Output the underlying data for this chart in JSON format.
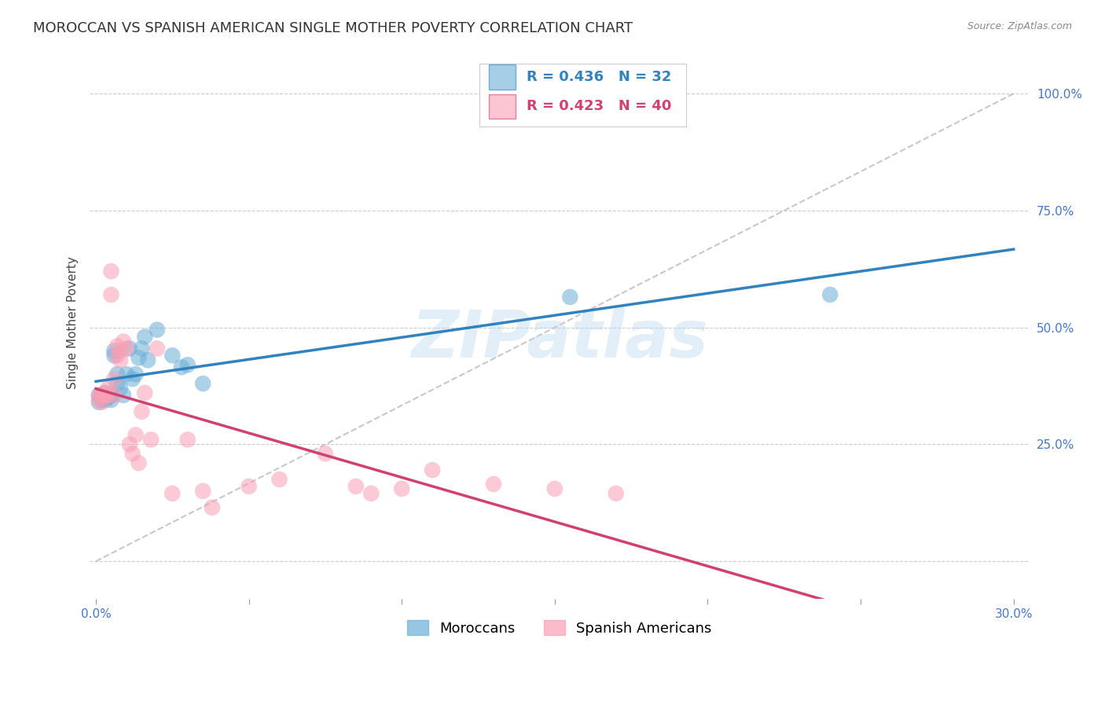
{
  "title": "MOROCCAN VS SPANISH AMERICAN SINGLE MOTHER POVERTY CORRELATION CHART",
  "source": "Source: ZipAtlas.com",
  "ylabel": "Single Mother Poverty",
  "xlim": [
    -0.002,
    0.305
  ],
  "ylim": [
    -0.08,
    1.1
  ],
  "yticks": [
    0.0,
    0.25,
    0.5,
    0.75,
    1.0
  ],
  "ytick_labels": [
    "",
    "25.0%",
    "50.0%",
    "75.0%",
    "100.0%"
  ],
  "xticks": [
    0.0,
    0.05,
    0.1,
    0.15,
    0.2,
    0.25,
    0.3
  ],
  "xtick_labels": [
    "0.0%",
    "",
    "",
    "",
    "",
    "",
    "30.0%"
  ],
  "moroccans_x": [
    0.001,
    0.001,
    0.002,
    0.002,
    0.003,
    0.003,
    0.003,
    0.004,
    0.004,
    0.005,
    0.005,
    0.006,
    0.006,
    0.007,
    0.007,
    0.008,
    0.009,
    0.01,
    0.011,
    0.012,
    0.013,
    0.014,
    0.015,
    0.016,
    0.017,
    0.02,
    0.025,
    0.028,
    0.03,
    0.035,
    0.24,
    0.155
  ],
  "moroccans_y": [
    0.355,
    0.34,
    0.355,
    0.345,
    0.345,
    0.35,
    0.36,
    0.355,
    0.35,
    0.355,
    0.345,
    0.44,
    0.45,
    0.4,
    0.38,
    0.37,
    0.355,
    0.4,
    0.455,
    0.39,
    0.4,
    0.435,
    0.455,
    0.48,
    0.43,
    0.495,
    0.44,
    0.415,
    0.42,
    0.38,
    0.57,
    0.565
  ],
  "spanish_x": [
    0.001,
    0.001,
    0.002,
    0.002,
    0.003,
    0.003,
    0.004,
    0.004,
    0.005,
    0.005,
    0.006,
    0.006,
    0.007,
    0.007,
    0.008,
    0.008,
    0.009,
    0.01,
    0.011,
    0.012,
    0.013,
    0.014,
    0.015,
    0.016,
    0.018,
    0.02,
    0.025,
    0.03,
    0.035,
    0.038,
    0.05,
    0.06,
    0.075,
    0.085,
    0.09,
    0.1,
    0.11,
    0.13,
    0.15,
    0.17
  ],
  "spanish_y": [
    0.355,
    0.345,
    0.355,
    0.34,
    0.36,
    0.355,
    0.37,
    0.355,
    0.62,
    0.57,
    0.355,
    0.39,
    0.46,
    0.44,
    0.45,
    0.43,
    0.47,
    0.455,
    0.25,
    0.23,
    0.27,
    0.21,
    0.32,
    0.36,
    0.26,
    0.455,
    0.145,
    0.26,
    0.15,
    0.115,
    0.16,
    0.175,
    0.23,
    0.16,
    0.145,
    0.155,
    0.195,
    0.165,
    0.155,
    0.145
  ],
  "moroccan_color": "#6baed6",
  "spanish_color": "#fa9fb5",
  "moroccan_line_color": "#3182bd",
  "spanish_line_color": "#d04070",
  "ref_line_color": "#bbbbbb",
  "grid_color": "#cccccc",
  "axis_color": "#4477cc",
  "background_color": "#ffffff",
  "legend_R_moroccan": "R = 0.436",
  "legend_N_moroccan": "N = 32",
  "legend_R_spanish": "R = 0.423",
  "legend_N_spanish": "N = 40",
  "watermark": "ZIPatlas",
  "title_fontsize": 13,
  "label_fontsize": 11,
  "tick_fontsize": 11,
  "legend_fontsize": 13
}
